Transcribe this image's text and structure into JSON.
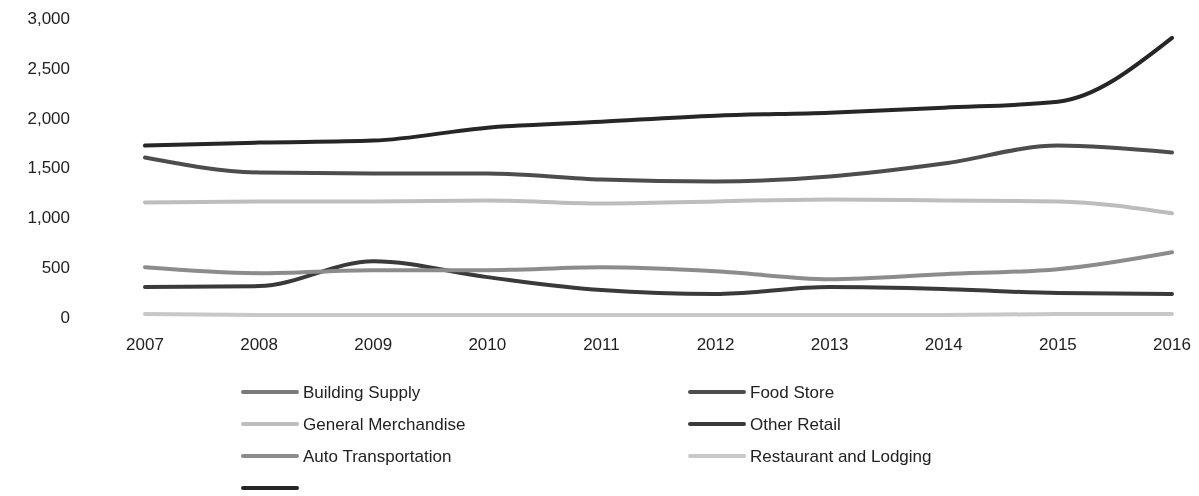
{
  "chart_data": {
    "type": "line",
    "categories": [
      "2007",
      "2008",
      "2009",
      "2010",
      "2011",
      "2012",
      "2013",
      "2014",
      "2015",
      "2016"
    ],
    "ylim": [
      0,
      3000
    ],
    "yticks": [
      {
        "value": 0,
        "label": "0"
      },
      {
        "value": 500,
        "label": "500"
      },
      {
        "value": 1000,
        "label": "1,000"
      },
      {
        "value": 1500,
        "label": "1,500"
      },
      {
        "value": 2000,
        "label": "2,000"
      },
      {
        "value": 2500,
        "label": "2,500"
      },
      {
        "value": 3000,
        "label": "3,000"
      }
    ],
    "grid": false,
    "legend": "bottom",
    "marker": "none",
    "line_style": "solid",
    "series": [
      {
        "name": "Building Supply",
        "color": "#7a7a7a",
        "values": [
          null,
          null,
          null,
          null,
          null,
          null,
          null,
          null,
          null,
          null
        ]
      },
      {
        "name": "Food Store",
        "color": "#4d4d4d",
        "values": [
          1600,
          1450,
          1440,
          1440,
          1380,
          1360,
          1410,
          1540,
          1720,
          1650
        ]
      },
      {
        "name": "General Merchandise",
        "color": "#bdbdbd",
        "values": [
          1150,
          1160,
          1160,
          1170,
          1140,
          1160,
          1180,
          1170,
          1160,
          1040
        ]
      },
      {
        "name": "Other Retail",
        "color": "#3a3a3a",
        "values": [
          300,
          310,
          560,
          400,
          270,
          230,
          300,
          280,
          240,
          230
        ]
      },
      {
        "name": "Auto Transportation",
        "color": "#8c8c8c",
        "values": [
          500,
          440,
          470,
          470,
          500,
          460,
          380,
          430,
          480,
          650
        ]
      },
      {
        "name": "Restaurant and Lodging",
        "color": "#c8c8c8",
        "values": [
          30,
          20,
          20,
          20,
          20,
          20,
          20,
          20,
          30,
          30
        ]
      },
      {
        "color": "#262626",
        "values": [
          1720,
          1750,
          1770,
          1900,
          1960,
          2020,
          2050,
          2100,
          2160,
          2800
        ]
      }
    ]
  }
}
